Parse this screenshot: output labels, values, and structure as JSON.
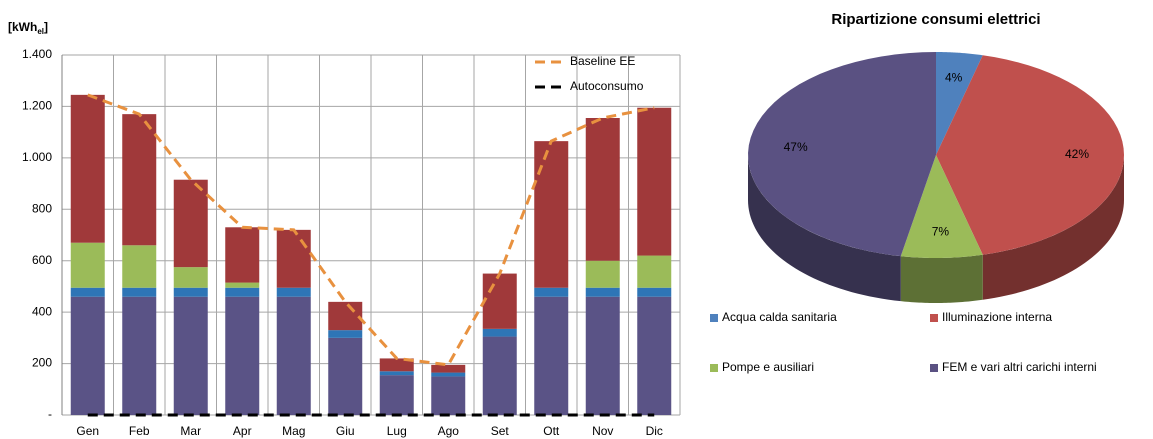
{
  "chart_data": [
    {
      "type": "bar",
      "ylabel_main": "[kWh",
      "ylabel_sub": "el",
      "ylabel_end": "]",
      "categories": [
        "Gen",
        "Feb",
        "Mar",
        "Apr",
        "Mag",
        "Giu",
        "Lug",
        "Ago",
        "Set",
        "Ott",
        "Nov",
        "Dic"
      ],
      "stacked": true,
      "series": [
        {
          "color": "#5a5386",
          "values": [
            460,
            460,
            460,
            460,
            460,
            300,
            155,
            150,
            305,
            460,
            460,
            460
          ]
        },
        {
          "color": "#2e75b6",
          "values": [
            35,
            35,
            35,
            35,
            35,
            30,
            15,
            15,
            30,
            35,
            35,
            35
          ]
        },
        {
          "color": "#9bbb59",
          "values": [
            175,
            165,
            80,
            20,
            0,
            0,
            0,
            0,
            0,
            0,
            105,
            125
          ]
        },
        {
          "color": "#a0393a",
          "values": [
            575,
            510,
            340,
            215,
            225,
            110,
            50,
            30,
            215,
            570,
            555,
            575
          ]
        },
        {
          "name": "Baseline EE",
          "type": "line",
          "dash": true,
          "color": "#e8913f",
          "values": [
            1245,
            1170,
            915,
            730,
            720,
            440,
            220,
            195,
            550,
            1065,
            1155,
            1195
          ]
        },
        {
          "name": "Autoconsumo",
          "type": "line",
          "dash": true,
          "color": "#000000",
          "values": [
            0,
            0,
            0,
            0,
            0,
            0,
            0,
            0,
            0,
            0,
            0,
            0
          ]
        }
      ],
      "ylim": [
        0,
        1400
      ],
      "yticks": [
        {
          "value": 0,
          "label": "-"
        },
        200,
        400,
        600,
        800,
        {
          "value": 1000,
          "label": "1.000"
        },
        {
          "value": 1200,
          "label": "1.200"
        },
        {
          "value": 1400,
          "label": "1.400"
        }
      ],
      "grid": true,
      "legend": "upper right"
    },
    {
      "type": "pie",
      "title": "Ripartizione consumi elettrici",
      "categories": [
        "Acqua calda sanitaria",
        "Illuminazione interna",
        "Pompe e ausiliari",
        "FEM e vari altri carichi interni"
      ],
      "values": [
        4,
        42,
        7,
        47
      ],
      "value_labels": [
        "4%",
        "42%",
        "7%",
        "47%"
      ],
      "colors": [
        "#4f81bd",
        "#c0504d",
        "#9bbb59",
        "#5a5182"
      ],
      "legend": "bottom"
    }
  ]
}
